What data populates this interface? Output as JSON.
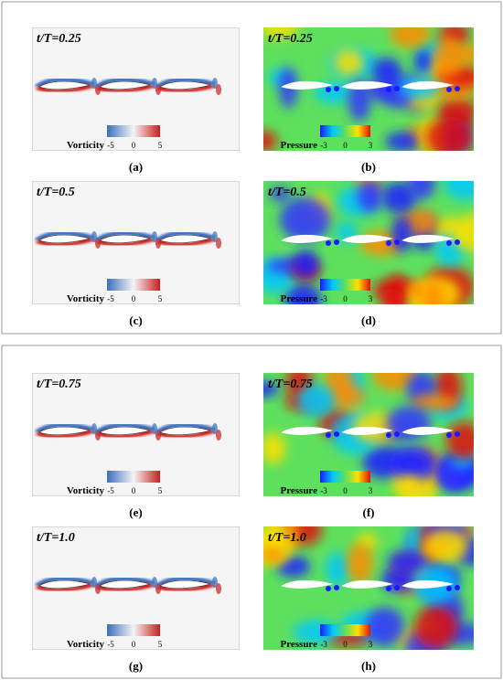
{
  "panels": [
    {
      "time": "t/T=0.25",
      "field": "Vorticity",
      "ticks": [
        "-5",
        "0",
        "5"
      ],
      "caption": "(a)"
    },
    {
      "time": "t/T=0.25",
      "field": "Pressure",
      "ticks": [
        "-3",
        "0",
        "3"
      ],
      "caption": "(b)"
    },
    {
      "time": "t/T=0.5",
      "field": "Vorticity",
      "ticks": [
        "-5",
        "0",
        "5"
      ],
      "caption": "(c)"
    },
    {
      "time": "t/T=0.5",
      "field": "Pressure",
      "ticks": [
        "-3",
        "0",
        "3"
      ],
      "caption": "(d)"
    },
    {
      "time": "t/T=0.75",
      "field": "Vorticity",
      "ticks": [
        "-5",
        "0",
        "5"
      ],
      "caption": "(e)"
    },
    {
      "time": "t/T=0.75",
      "field": "Pressure",
      "ticks": [
        "-3",
        "0",
        "3"
      ],
      "caption": "(f)"
    },
    {
      "time": "t/T=1.0",
      "field": "Vorticity",
      "ticks": [
        "-5",
        "0",
        "5"
      ],
      "caption": "(g)"
    },
    {
      "time": "t/T=1.0",
      "field": "Pressure",
      "ticks": [
        "-3",
        "0",
        "3"
      ],
      "caption": "(h)"
    }
  ]
}
